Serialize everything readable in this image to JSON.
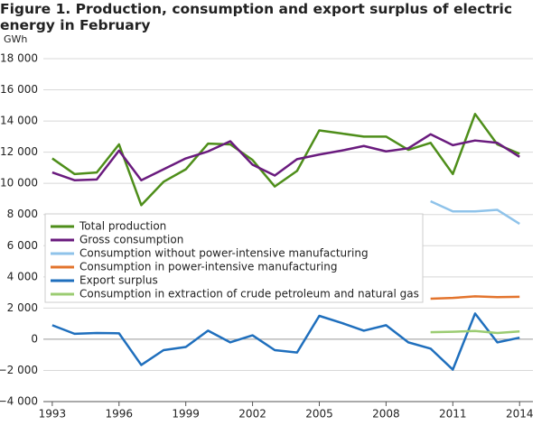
{
  "chart_data": {
    "type": "line",
    "title": "Figure 1. Production, consumption and export surplus of electric energy in February",
    "y_label": "GWh",
    "x": [
      1993,
      1994,
      1995,
      1996,
      1997,
      1998,
      1999,
      2000,
      2001,
      2002,
      2003,
      2004,
      2005,
      2006,
      2007,
      2008,
      2009,
      2010,
      2011,
      2012,
      2013,
      2014
    ],
    "xlim": [
      1992.6,
      2014.6
    ],
    "xticks": [
      1993,
      1996,
      1999,
      2002,
      2005,
      2008,
      2011,
      2014
    ],
    "ylim": [
      -4000,
      18000
    ],
    "yticks": [
      {
        "value": -4000,
        "label": "−4 000"
      },
      {
        "value": -2000,
        "label": "−2 000"
      },
      0,
      {
        "value": 2000,
        "label": "2 000"
      },
      {
        "value": 4000,
        "label": "4 000"
      },
      {
        "value": 6000,
        "label": "6 000"
      },
      {
        "value": 8000,
        "label": "8 000"
      },
      {
        "value": 10000,
        "label": "10 000"
      },
      {
        "value": 12000,
        "label": "12 000"
      },
      {
        "value": 14000,
        "label": "14 000"
      },
      {
        "value": 16000,
        "label": "16 000"
      },
      {
        "value": 18000,
        "label": "18 000"
      }
    ],
    "grid": true,
    "legend": "left",
    "series": [
      {
        "name": "Total production",
        "color": "#4e8e1a",
        "values": [
          11600,
          10600,
          10700,
          12500,
          8600,
          10100,
          10900,
          12550,
          12500,
          11500,
          9800,
          10800,
          13400,
          13200,
          13000,
          13000,
          12150,
          12600,
          10600,
          14450,
          12500,
          11900
        ]
      },
      {
        "name": "Gross consumption",
        "color": "#6a1b7e",
        "values": [
          10700,
          10200,
          10250,
          12100,
          10200,
          10900,
          11600,
          12050,
          12700,
          11200,
          10500,
          11550,
          11850,
          12100,
          12400,
          12050,
          12250,
          13150,
          12450,
          12750,
          12600,
          11700
        ]
      },
      {
        "name": "Consumption without power-intensive manufacturing",
        "color": "#8fc3ea",
        "values": [
          null,
          null,
          null,
          null,
          null,
          null,
          null,
          null,
          null,
          null,
          null,
          null,
          null,
          null,
          null,
          null,
          null,
          8850,
          8200,
          8200,
          8300,
          7400
        ]
      },
      {
        "name": "Consumption in power-intensive manufacturing",
        "color": "#e3742d",
        "values": [
          null,
          null,
          null,
          null,
          null,
          null,
          null,
          null,
          null,
          null,
          null,
          null,
          null,
          null,
          null,
          null,
          null,
          2600,
          2650,
          2750,
          2700,
          2720
        ]
      },
      {
        "name": "Export surplus",
        "color": "#1f6fbd",
        "values": [
          900,
          350,
          400,
          380,
          -1650,
          -700,
          -500,
          550,
          -200,
          250,
          -700,
          -850,
          1500,
          1050,
          550,
          900,
          -200,
          -600,
          -1950,
          1650,
          -200,
          100
        ]
      },
      {
        "name": "Consumption in extraction of crude petroleum and natural gas",
        "color": "#9bcc72",
        "values": [
          null,
          null,
          null,
          null,
          null,
          null,
          null,
          null,
          null,
          null,
          null,
          null,
          null,
          null,
          null,
          null,
          null,
          450,
          480,
          530,
          400,
          500
        ]
      }
    ]
  }
}
